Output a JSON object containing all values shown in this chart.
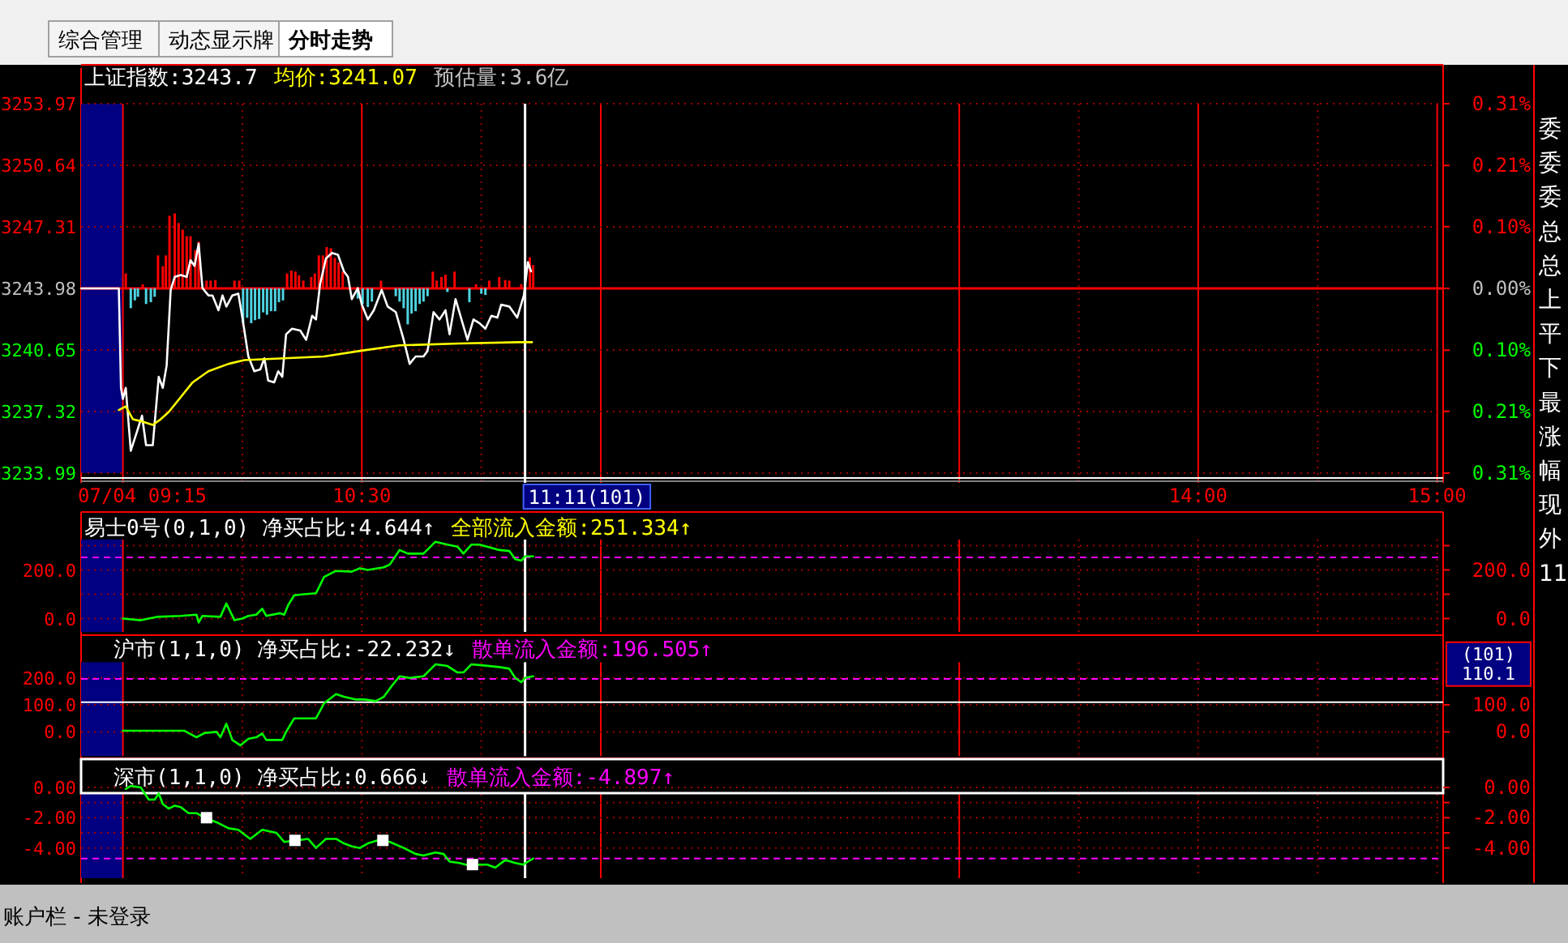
{
  "chart_data": [
    {
      "type": "line",
      "xlabel": "07/04 09:15",
      "xlim": [
        9.325,
        15.025
      ],
      "xticks": [
        {
          "value": 9.5,
          "label": null
        },
        {
          "value": 10,
          "label": null
        },
        {
          "value": 10.5,
          "label": "10:30"
        },
        {
          "value": 11,
          "label": null
        },
        {
          "value": 11.5,
          "label": null
        },
        {
          "value": 13,
          "label": null
        },
        {
          "value": 13.5,
          "label": null
        },
        {
          "value": 14,
          "label": "14:00"
        },
        {
          "value": 14.5,
          "label": null
        },
        {
          "value": 15,
          "label": "15:00"
        }
      ],
      "ylim": [
        3233.99,
        3253.97
      ],
      "yticks": [
        3233.99,
        3237.32,
        3240.65,
        3243.98,
        3247.31,
        3250.64,
        3253.97
      ],
      "y2lim": [
        -0.308,
        0.308
      ],
      "y2ticks": [
        {
          "value": -0.308,
          "label": "0.31%"
        },
        {
          "value": -0.205,
          "label": "0.21%"
        },
        {
          "value": -0.103,
          "label": "0.10%"
        },
        {
          "value": 0,
          "label": "0.00%"
        },
        {
          "value": 0.103,
          "label": "0.10%"
        },
        {
          "value": 0.205,
          "label": "0.21%"
        },
        {
          "value": 0.308,
          "label": "0.31%"
        }
      ],
      "grid": true,
      "title": "上证指数:3243.7",
      "annotations": [
        "预估量:3.6亿"
      ],
      "bands": [
        {
          "axis": "x",
          "from": 9.325,
          "to": 9.5,
          "color": "#000080"
        }
      ],
      "ref_lines": [
        {
          "axis": "y",
          "value": 3243.98,
          "color": "#ff0000"
        },
        {
          "axis": "x",
          "value": 11.183,
          "label": "11:11(101)",
          "color": "#ffffff"
        }
      ],
      "series": [
        {
          "type": "bar",
          "axis": "y2",
          "color": "#ff0000",
          "x": [
            9.512,
            9.583,
            9.647,
            9.667,
            9.68,
            9.695,
            9.717,
            9.733,
            9.75,
            9.767,
            9.783,
            9.803,
            9.817,
            9.85,
            9.867,
            9.887,
            9.967,
            9.987,
            10.187,
            10.205,
            10.222,
            10.237,
            10.255,
            10.288,
            10.303,
            10.32,
            10.337,
            10.353,
            10.37,
            10.387,
            10.403,
            10.42,
            10.58,
            10.797,
            10.813,
            10.833,
            10.85,
            10.888,
            10.978,
            11.033,
            11.075,
            11.1,
            11.117,
            11.167,
            11.203,
            11.217
          ],
          "values": [
            0.025,
            0.007,
            0.055,
            0.037,
            0.055,
            0.121,
            0.125,
            0.109,
            0.098,
            0.087,
            0.087,
            0.064,
            0.078,
            0.013,
            0.013,
            0.014,
            0.013,
            0.013,
            0.025,
            0.03,
            0.028,
            0.022,
            0.013,
            0.019,
            0.025,
            0.055,
            0.055,
            0.069,
            0.067,
            0.051,
            0.043,
            0.028,
            0.013,
            0.028,
            0.013,
            0.019,
            0.023,
            0.028,
            0.007,
            0.013,
            0.019,
            0.014,
            0.013,
            0.007,
            0.052,
            0.039
          ]
        },
        {
          "type": "bar",
          "axis": "y2",
          "color": "#4fd3e0",
          "x": [
            9.533,
            9.55,
            9.563,
            9.597,
            9.617,
            9.633,
            10.003,
            10.02,
            10.037,
            10.053,
            10.07,
            10.087,
            10.103,
            10.12,
            10.137,
            10.153,
            10.17,
            10.483,
            10.503,
            10.525,
            10.542,
            10.642,
            10.658,
            10.675,
            10.692,
            10.708,
            10.725,
            10.742,
            10.758,
            10.775,
            10.858,
            10.95,
            11,
            11.017
          ],
          "values": [
            -0.033,
            -0.02,
            -0.014,
            -0.026,
            -0.023,
            -0.014,
            -0.058,
            -0.049,
            -0.058,
            -0.053,
            -0.051,
            -0.04,
            -0.044,
            -0.038,
            -0.038,
            -0.023,
            -0.02,
            -0.017,
            -0.026,
            -0.031,
            -0.022,
            -0.013,
            -0.022,
            -0.033,
            -0.06,
            -0.042,
            -0.038,
            -0.026,
            -0.022,
            -0.013,
            -0.006,
            -0.023,
            -0.009,
            -0.011
          ]
        },
        {
          "color": "#ffffff",
          "x": [
            9.325,
            9.483,
            9.492,
            9.5,
            9.512,
            9.533,
            9.558,
            9.58,
            9.597,
            9.625,
            9.65,
            9.667,
            9.683,
            9.7,
            9.717,
            9.742,
            9.767,
            9.783,
            9.8,
            9.817,
            9.833,
            9.858,
            9.875,
            9.9,
            9.917,
            9.933,
            9.958,
            9.983,
            10,
            10.025,
            10.05,
            10.075,
            10.092,
            10.108,
            10.133,
            10.15,
            10.167,
            10.183,
            10.208,
            10.242,
            10.267,
            10.292,
            10.308,
            10.325,
            10.35,
            10.375,
            10.4,
            10.425,
            10.442,
            10.458,
            10.483,
            10.5,
            10.525,
            10.55,
            10.583,
            10.608,
            10.642,
            10.675,
            10.7,
            10.725,
            10.758,
            10.775,
            10.8,
            10.825,
            10.85,
            10.867,
            10.892,
            10.917,
            10.942,
            10.967,
            10.992,
            11.017,
            11.042,
            11.067,
            11.083,
            11.117,
            11.15,
            11.178,
            11.195,
            11.208
          ],
          "values": [
            3243.98,
            3243.98,
            3238.6,
            3238.0,
            3238.6,
            3235.2,
            3236.2,
            3237.1,
            3235.5,
            3235.5,
            3239.2,
            3238.6,
            3239.8,
            3243.9,
            3244.6,
            3244.7,
            3244.6,
            3245.5,
            3245.2,
            3246.4,
            3244.0,
            3243.6,
            3243.6,
            3242.8,
            3243.6,
            3243.0,
            3243.6,
            3243.7,
            3242.4,
            3240.3,
            3239.5,
            3239.6,
            3240.2,
            3239.0,
            3238.9,
            3239.5,
            3239.2,
            3241.5,
            3241.8,
            3241.7,
            3241.2,
            3242.5,
            3242.3,
            3244.2,
            3245.6,
            3245.9,
            3245.8,
            3244.9,
            3244.6,
            3243.4,
            3244.0,
            3243.1,
            3242.3,
            3242.8,
            3243.9,
            3243.0,
            3242.7,
            3241.2,
            3239.9,
            3240.3,
            3240.3,
            3240.6,
            3242.7,
            3242.3,
            3242.8,
            3241.5,
            3243.4,
            3242.3,
            3241.2,
            3242.3,
            3242.1,
            3241.8,
            3242.5,
            3242.4,
            3243.1,
            3243.0,
            3242.4,
            3243.6,
            3245.4,
            3244.9
          ]
        },
        {
          "name": "均价:3241.07",
          "color": "#ffff00",
          "x": [
            9.483,
            9.512,
            9.542,
            9.575,
            9.625,
            9.658,
            9.692,
            9.742,
            9.792,
            9.858,
            9.942,
            10.008,
            10.175,
            10.342,
            10.492,
            10.658,
            10.908,
            11.158,
            11.212
          ],
          "values": [
            3237.4,
            3237.6,
            3236.9,
            3236.8,
            3236.6,
            3236.9,
            3237.3,
            3238.1,
            3238.9,
            3239.5,
            3239.9,
            3240.1,
            3240.2,
            3240.3,
            3240.6,
            3240.9,
            3241.0,
            3241.07,
            3241.07
          ]
        }
      ]
    },
    {
      "type": "line",
      "title": "易士0号(0,1,0) 净买占比:4.644↑",
      "subtitle": "全部流入金额:251.334↑",
      "xlim": [
        9.325,
        15.025
      ],
      "xticks": [
        {
          "value": 9.5,
          "label": null
        },
        {
          "value": 10,
          "label": null
        },
        {
          "value": 10.5,
          "label": null
        },
        {
          "value": 11,
          "label": null
        },
        {
          "value": 11.5,
          "label": null
        },
        {
          "value": 13,
          "label": null
        },
        {
          "value": 13.5,
          "label": null
        },
        {
          "value": 14,
          "label": null
        },
        {
          "value": 14.5,
          "label": null
        },
        {
          "value": 15,
          "label": null
        }
      ],
      "tick_labels": "y",
      "ylim": [
        -55,
        325
      ],
      "yticks": [
        {
          "value": 0,
          "label": "0.0"
        },
        {
          "value": 100,
          "label": null
        },
        {
          "value": 200,
          "label": "200.0"
        },
        {
          "value": 300,
          "label": null
        }
      ],
      "y2lim": [
        -55,
        325
      ],
      "y2ticks": [
        {
          "value": 0,
          "label": "0.0"
        },
        {
          "value": 100,
          "label": null
        },
        {
          "value": 200,
          "label": "200.0"
        },
        {
          "value": 300,
          "label": null
        }
      ],
      "grid": true,
      "bands": [
        {
          "axis": "x",
          "from": 9.325,
          "to": 9.5,
          "color": "#000080"
        }
      ],
      "ref_lines": [
        {
          "axis": "y",
          "value": 251.3,
          "color": "#ff00ff",
          "line_style": "dashed"
        },
        {
          "axis": "x",
          "value": 11.183,
          "color": "#ffffff"
        }
      ],
      "series": [
        {
          "color": "#00ff00",
          "x": [
            9.5,
            9.575,
            9.642,
            9.742,
            9.808,
            9.817,
            9.833,
            9.908,
            9.933,
            9.967,
            10,
            10.025,
            10.058,
            10.083,
            10.1,
            10.158,
            10.175,
            10.192,
            10.217,
            10.258,
            10.308,
            10.342,
            10.392,
            10.458,
            10.492,
            10.525,
            10.592,
            10.617,
            10.658,
            10.692,
            10.758,
            10.808,
            10.858,
            10.9,
            10.925,
            10.958,
            10.992,
            11.033,
            11.075,
            11.117,
            11.142,
            11.167,
            11.183,
            11.217
          ],
          "values": [
            0,
            -7,
            7,
            11,
            16,
            -16,
            11,
            7,
            62,
            -7,
            0,
            11,
            16,
            40,
            11,
            22,
            16,
            56,
            96,
            100,
            104,
            171,
            196,
            193,
            207,
            200,
            211,
            222,
            282,
            267,
            267,
            316,
            304,
            296,
            267,
            304,
            304,
            293,
            282,
            278,
            244,
            238,
            256,
            256
          ]
        }
      ]
    },
    {
      "type": "line",
      "title": "沪市(1,1,0) 净买占比:-22.232↓",
      "subtitle": "散单流入金额:196.505↑",
      "xlim": [
        9.325,
        15.025
      ],
      "xticks": [
        {
          "value": 9.5,
          "label": null
        },
        {
          "value": 10,
          "label": null
        },
        {
          "value": 10.5,
          "label": null
        },
        {
          "value": 11,
          "label": null
        },
        {
          "value": 11.5,
          "label": null
        },
        {
          "value": 13,
          "label": null
        },
        {
          "value": 13.5,
          "label": null
        },
        {
          "value": 14,
          "label": null
        },
        {
          "value": 14.5,
          "label": null
        },
        {
          "value": 15,
          "label": null
        }
      ],
      "tick_labels": "y",
      "ylim": [
        -90,
        258
      ],
      "yticks": [
        {
          "value": 0,
          "label": "0.0"
        },
        {
          "value": 100,
          "label": "100.0"
        },
        {
          "value": 200,
          "label": "200.0"
        }
      ],
      "y2lim": [
        -90,
        258
      ],
      "y2ticks": [
        {
          "value": 0,
          "label": "0.0"
        },
        {
          "value": 100,
          "label": "100.0"
        }
      ],
      "grid": true,
      "bands": [
        {
          "axis": "x",
          "from": 9.325,
          "to": 9.5,
          "color": "#000080"
        }
      ],
      "ref_lines": [
        {
          "axis": "y",
          "value": 196.5,
          "color": "#ff00ff",
          "line_style": "dashed"
        },
        {
          "axis": "y",
          "value": 110.1,
          "label": "(101) 110.1",
          "color": "#ffffff"
        },
        {
          "axis": "x",
          "value": 11.183,
          "color": "#ffffff"
        }
      ],
      "series": [
        {
          "color": "#00ff00",
          "x": [
            9.5,
            9.575,
            9.658,
            9.758,
            9.808,
            9.842,
            9.892,
            9.908,
            9.933,
            9.958,
            9.992,
            10.025,
            10.058,
            10.083,
            10.1,
            10.167,
            10.183,
            10.217,
            10.242,
            10.308,
            10.342,
            10.392,
            10.425,
            10.475,
            10.508,
            10.558,
            10.592,
            10.625,
            10.658,
            10.7,
            10.758,
            10.808,
            10.858,
            10.9,
            10.925,
            10.958,
            11.008,
            11.075,
            11.117,
            11.142,
            11.167,
            11.183,
            11.217
          ],
          "values": [
            4,
            4,
            4,
            4,
            -20,
            -4,
            0,
            -20,
            30,
            -30,
            -50,
            -26,
            -20,
            -6,
            -30,
            -30,
            0,
            50,
            50,
            50,
            106,
            140,
            130,
            120,
            120,
            114,
            130,
            170,
            206,
            200,
            206,
            250,
            244,
            220,
            220,
            250,
            246,
            240,
            234,
            200,
            184,
            200,
            206
          ]
        }
      ]
    },
    {
      "type": "line",
      "title": "深市(1,1,0) 净买占比:0.666↓",
      "subtitle": "散单流入金额:-4.897↑",
      "xlim": [
        9.325,
        15.025
      ],
      "xticks": [
        {
          "value": 9.5,
          "label": null
        },
        {
          "value": 10,
          "label": null
        },
        {
          "value": 10.5,
          "label": null
        },
        {
          "value": 11,
          "label": null
        },
        {
          "value": 11.5,
          "label": null
        },
        {
          "value": 13,
          "label": null
        },
        {
          "value": 13.5,
          "label": null
        },
        {
          "value": 14,
          "label": null
        },
        {
          "value": 14.5,
          "label": null
        },
        {
          "value": 15,
          "label": null
        }
      ],
      "tick_labels": "y",
      "ylim": [
        -6,
        1.8
      ],
      "yticks": [
        {
          "value": 0,
          "label": "0.00"
        },
        {
          "value": -1,
          "label": null
        },
        {
          "value": -2,
          "label": "-2.00"
        },
        {
          "value": -3,
          "label": null
        },
        {
          "value": -4,
          "label": "-4.00"
        }
      ],
      "y2lim": [
        -6,
        1.8
      ],
      "y2ticks": [
        {
          "value": 0,
          "label": "0.00"
        },
        {
          "value": -1,
          "label": null
        },
        {
          "value": -2,
          "label": "-2.00"
        },
        {
          "value": -3,
          "label": null
        },
        {
          "value": -4,
          "label": "-4.00"
        }
      ],
      "grid": true,
      "bands": [
        {
          "axis": "x",
          "from": 9.325,
          "to": 9.5,
          "color": "#000080"
        }
      ],
      "ref_lines": [
        {
          "axis": "y",
          "value": -4.7,
          "color": "#ff00ff",
          "line_style": "dashed"
        },
        {
          "axis": "x",
          "value": 11.183,
          "color": "#ffffff"
        }
      ],
      "series": [
        {
          "color": "#00ff00",
          "x": [
            9.512,
            9.533,
            9.575,
            9.608,
            9.633,
            9.65,
            9.667,
            9.692,
            9.717,
            9.742,
            9.775,
            9.808,
            9.842,
            9.892,
            9.942,
            9.983,
            10.033,
            10.083,
            10.142,
            10.175,
            10.225,
            10.275,
            10.308,
            10.35,
            10.392,
            10.425,
            10.458,
            10.492,
            10.525,
            10.567,
            10.617,
            10.675,
            10.725,
            10.758,
            10.808,
            10.842,
            10.867,
            10.908,
            10.958,
            10.992,
            11.025,
            11.058,
            11.1,
            11.142,
            11.175,
            11.217
          ],
          "values": [
            -0.1,
            0.1,
            0,
            -0.8,
            -0.8,
            -0.4,
            -1.1,
            -1.4,
            -1.2,
            -1.3,
            -1.7,
            -1.7,
            -2.0,
            -2.3,
            -2.7,
            -2.8,
            -3.4,
            -2.8,
            -3.0,
            -3.6,
            -3.5,
            -3.4,
            -4.0,
            -3.4,
            -3.4,
            -3.7,
            -3.9,
            -4.0,
            -3.7,
            -3.5,
            -3.6,
            -4.0,
            -4.4,
            -4.5,
            -4.3,
            -4.4,
            -4.9,
            -5.0,
            -5.2,
            -5.1,
            -5.1,
            -5.3,
            -4.8,
            -5.0,
            -5.1,
            -4.7
          ]
        },
        {
          "type": "scatter",
          "marker": "square",
          "color": "#ffffff",
          "x": [
            9.85,
            10.22,
            10.588,
            10.963
          ],
          "values": [
            -2.0,
            -3.5,
            -3.5,
            -5.1
          ]
        }
      ]
    },
    {
      "type": "other",
      "annotations": [
        "综合管理",
        "动态显示牌",
        "分时走势",
        "账户栏 - 未登录",
        "委",
        "委",
        "委",
        "总",
        "总",
        "上",
        "平",
        "下",
        "最",
        "涨",
        "幅",
        "现",
        "外",
        "11"
      ]
    }
  ]
}
